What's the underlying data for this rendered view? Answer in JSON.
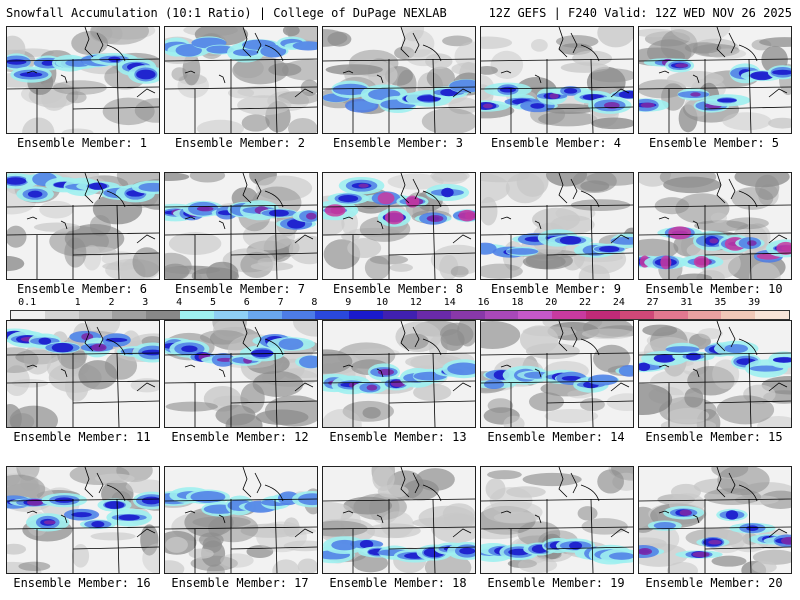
{
  "header": {
    "left": "Snowfall Accumulation (10:1 Ratio) | College of DuPage NEXLAB",
    "right": "12Z GEFS | F240 Valid: 12Z WED NOV 26 2025"
  },
  "member_label_prefix": "Ensemble Member: ",
  "members": [
    {
      "id": 1,
      "label": "1",
      "band": [
        0.3,
        0.45
      ],
      "intensity": 2
    },
    {
      "id": 2,
      "label": "2",
      "band": [
        0.15,
        0.25
      ],
      "intensity": 1
    },
    {
      "id": 3,
      "label": "3",
      "band": [
        0.55,
        0.75
      ],
      "intensity": 2
    },
    {
      "id": 4,
      "label": "4",
      "band": [
        0.55,
        0.8
      ],
      "intensity": 3
    },
    {
      "id": 5,
      "label": "5",
      "band": [
        0.2,
        0.75
      ],
      "intensity": 3
    },
    {
      "id": 6,
      "label": "6",
      "band": [
        0.05,
        0.2
      ],
      "intensity": 2
    },
    {
      "id": 7,
      "label": "7",
      "band": [
        0.3,
        0.5
      ],
      "intensity": 3
    },
    {
      "id": 8,
      "label": "8",
      "band": [
        0.1,
        0.55
      ],
      "intensity": 4
    },
    {
      "id": 9,
      "label": "9",
      "band": [
        0.6,
        0.75
      ],
      "intensity": 2
    },
    {
      "id": 10,
      "label": "10",
      "band": [
        0.55,
        0.85
      ],
      "intensity": 4
    },
    {
      "id": 11,
      "label": "11",
      "band": [
        0.1,
        0.35
      ],
      "intensity": 3
    },
    {
      "id": 12,
      "label": "12",
      "band": [
        0.15,
        0.4
      ],
      "intensity": 3
    },
    {
      "id": 13,
      "label": "13",
      "band": [
        0.45,
        0.7
      ],
      "intensity": 3
    },
    {
      "id": 14,
      "label": "14",
      "band": [
        0.45,
        0.65
      ],
      "intensity": 2
    },
    {
      "id": 15,
      "label": "15",
      "band": [
        0.2,
        0.45
      ],
      "intensity": 2
    },
    {
      "id": 16,
      "label": "16",
      "band": [
        0.3,
        0.55
      ],
      "intensity": 3
    },
    {
      "id": 17,
      "label": "17",
      "band": [
        0.25,
        0.4
      ],
      "intensity": 1
    },
    {
      "id": 18,
      "label": "18",
      "band": [
        0.7,
        0.95
      ],
      "intensity": 2
    },
    {
      "id": 19,
      "label": "19",
      "band": [
        0.7,
        0.85
      ],
      "intensity": 2
    },
    {
      "id": 20,
      "label": "20",
      "band": [
        0.3,
        0.85
      ],
      "intensity": 3
    }
  ],
  "colorbar": {
    "ticks": [
      "0.1",
      "1",
      "2",
      "3",
      "4",
      "5",
      "6",
      "7",
      "8",
      "9",
      "10",
      "12",
      "14",
      "16",
      "18",
      "20",
      "22",
      "24",
      "27",
      "31",
      "35",
      "39"
    ],
    "colors": [
      "#f0f0f0",
      "#d4d4d4",
      "#bcbcbc",
      "#a0a0a0",
      "#888888",
      "#9ff0f0",
      "#8fcff5",
      "#6aa6ee",
      "#4d7ce6",
      "#2a48dc",
      "#1a1acc",
      "#4020b0",
      "#6a2aa8",
      "#8838a8",
      "#a848b8",
      "#c458c8",
      "#c83aa0",
      "#c02a78",
      "#d04878",
      "#e27890",
      "#e8a2a2",
      "#f0c8b8",
      "#f8e4d8"
    ]
  },
  "colors": {
    "land": "#f2f2f2",
    "border": "#000000",
    "shade_light": "#c8c8c8",
    "shade_dark": "#8c8c8c",
    "cyan": "#9ff0f0",
    "blue": "#4d7ce6",
    "deep_blue": "#1a1acc",
    "purple": "#7a2aa8",
    "magenta": "#c83aa0"
  }
}
